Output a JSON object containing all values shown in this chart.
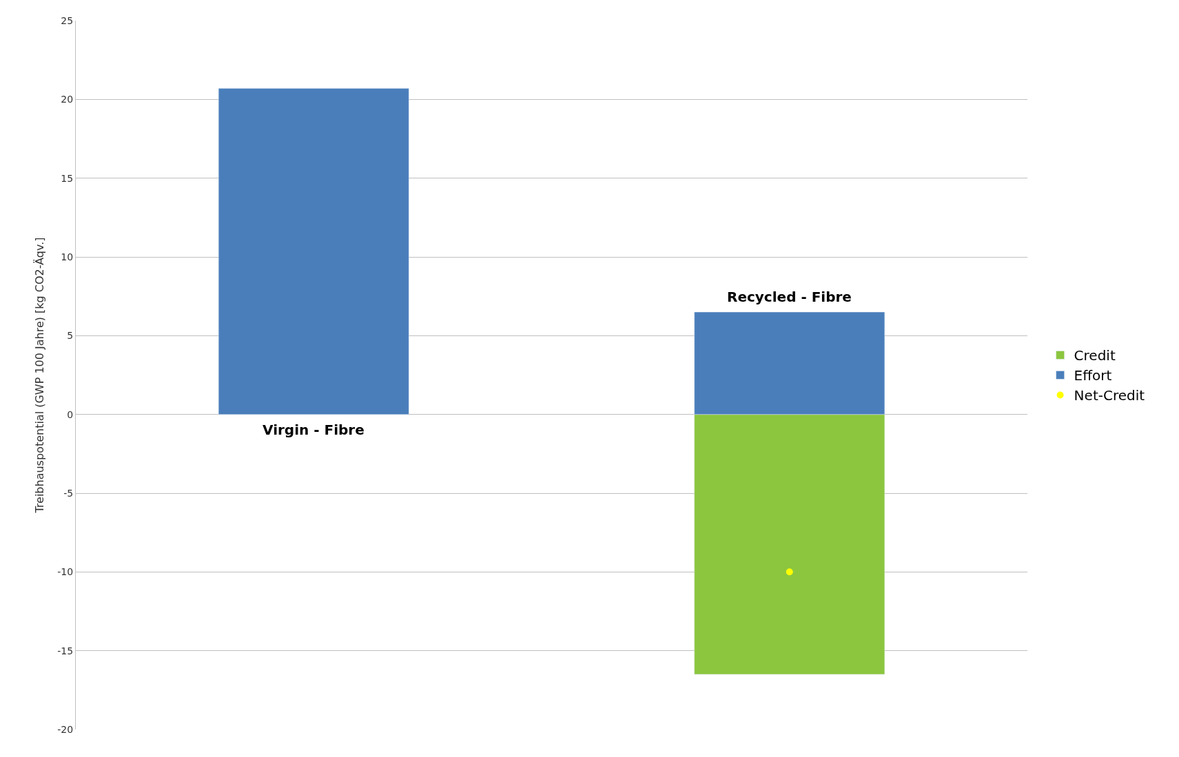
{
  "chart_data": {
    "type": "bar",
    "ylabel": "Treibhauspotential (GWP 100 Jahre) [kg CO2-Äqv.]",
    "categories": [
      "Virgin - Fibre",
      "Recycled - Fibre"
    ],
    "stacked": true,
    "series": [
      {
        "name": "Credit",
        "color": "#8cc63f",
        "values": [
          null,
          -16.5
        ]
      },
      {
        "name": "Effort",
        "color": "#4a7ebb",
        "values": [
          20.7,
          6.5
        ]
      },
      {
        "name": "Net-Credit",
        "type": "scatter",
        "color": "#ffff00",
        "values": [
          null,
          -10
        ]
      }
    ],
    "ylim": [
      -20,
      25
    ],
    "yticks": [
      -20,
      -15,
      -10,
      -5,
      0,
      5,
      10,
      15,
      20,
      25
    ],
    "grid": "y",
    "legend": "right",
    "marker": "circle",
    "tick_labels": "y"
  }
}
